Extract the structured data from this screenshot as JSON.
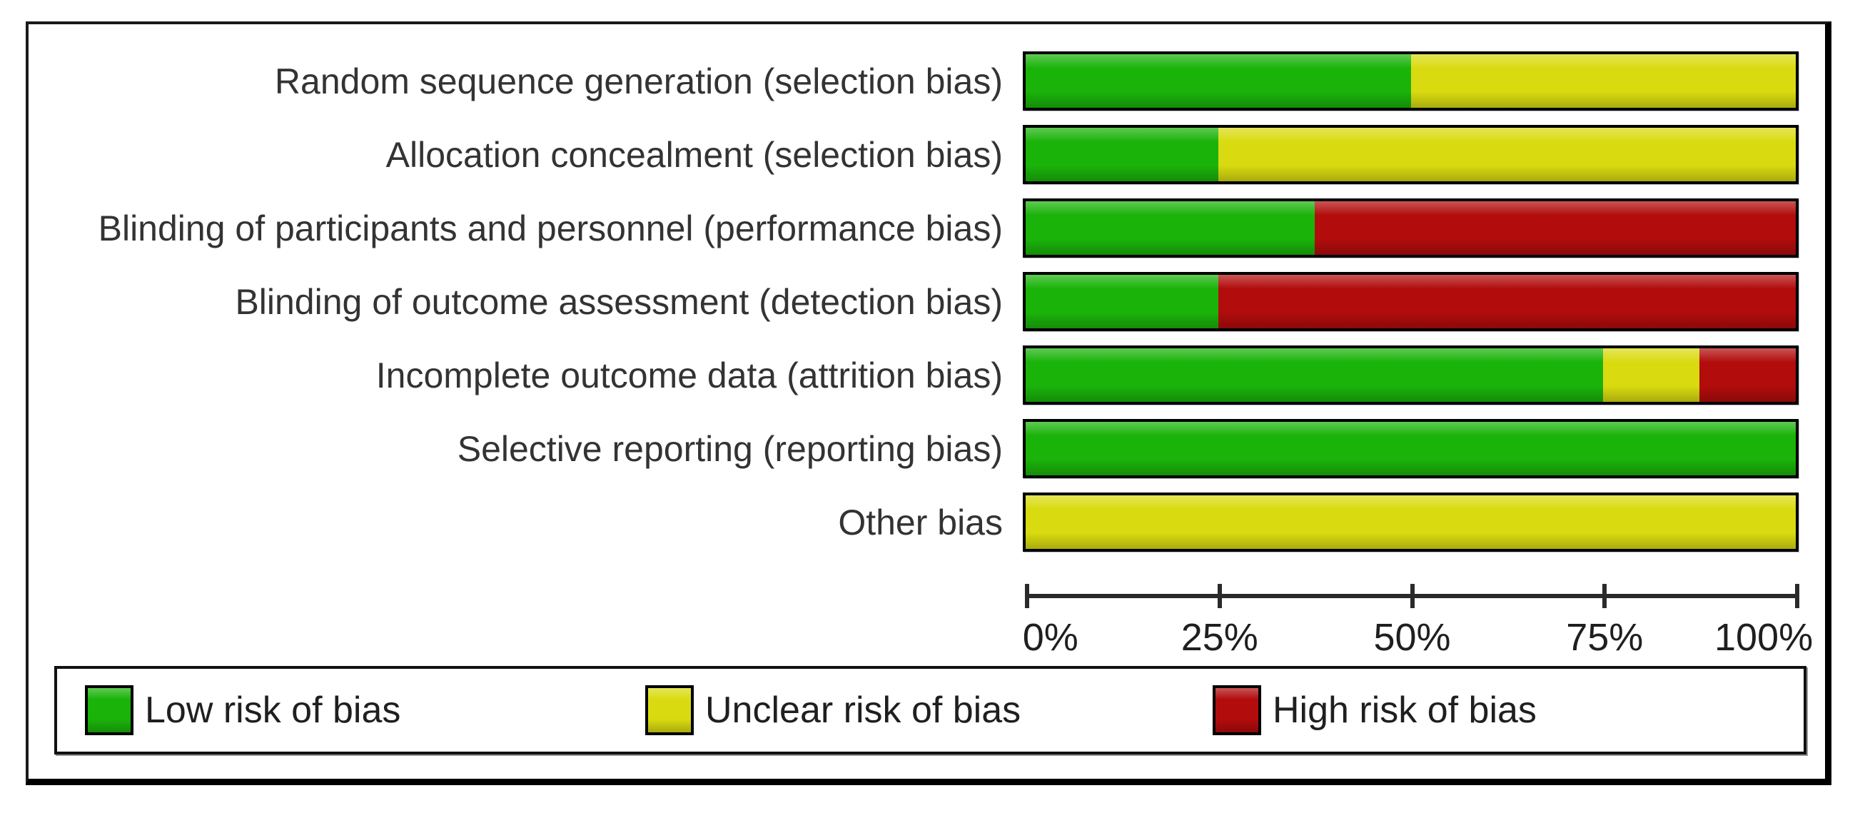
{
  "chart_data": {
    "type": "bar",
    "orientation": "horizontal",
    "stacked": true,
    "title": "",
    "xlabel": "",
    "ylabel": "",
    "xlim": [
      0,
      100
    ],
    "x_ticks": [
      "0%",
      "25%",
      "50%",
      "75%",
      "100%"
    ],
    "grid": false,
    "legend_position": "bottom",
    "categories": [
      "Random sequence generation (selection bias)",
      "Allocation concealment (selection bias)",
      "Blinding of participants and personnel (performance bias)",
      "Blinding of outcome assessment (detection bias)",
      "Incomplete outcome data (attrition bias)",
      "Selective reporting (reporting bias)",
      "Other bias"
    ],
    "series": [
      {
        "name": "Low risk of bias",
        "key": "low",
        "values": [
          50,
          25,
          37.5,
          25,
          75,
          100,
          0
        ]
      },
      {
        "name": "Unclear risk of bias",
        "key": "unclear",
        "values": [
          50,
          75,
          0,
          0,
          12.5,
          0,
          100
        ]
      },
      {
        "name": "High risk of bias",
        "key": "high",
        "values": [
          0,
          0,
          62.5,
          75,
          12.5,
          0,
          0
        ]
      }
    ]
  },
  "legend": {
    "items": [
      {
        "label": "Low risk of bias",
        "key": "low"
      },
      {
        "label": "Unclear risk of bias",
        "key": "unclear"
      },
      {
        "label": "High risk of bias",
        "key": "high"
      }
    ]
  },
  "colors": {
    "low": "#1AB30A",
    "unclear": "#D9DB10",
    "high": "#B20C0C"
  }
}
